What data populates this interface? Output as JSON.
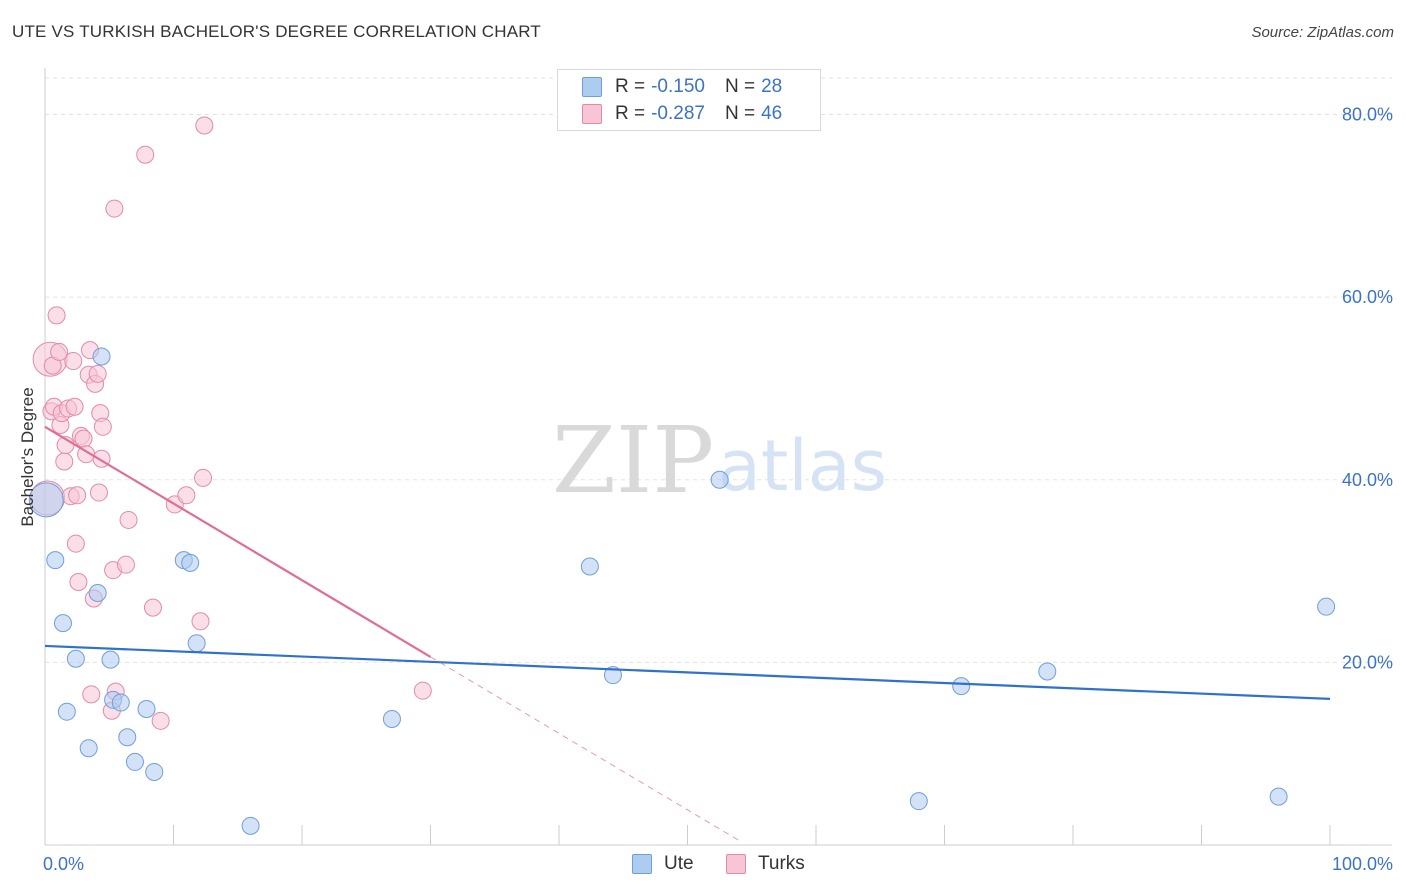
{
  "header": {
    "title": "UTE VS TURKISH BACHELOR'S DEGREE CORRELATION CHART",
    "source": "Source: ZipAtlas.com"
  },
  "legend": {
    "rows": [
      {
        "r_label": "R =",
        "r_value": "-0.150",
        "n_label": "N =",
        "n_value": "28",
        "color": "#aecbf0",
        "border": "#6f9fd8"
      },
      {
        "r_label": "R =",
        "r_value": "-0.287",
        "n_label": "N =",
        "n_value": "46",
        "color": "#f7c5d5",
        "border": "#e48aa8"
      }
    ],
    "bottom": [
      {
        "label": "Ute",
        "color": "#aecbf0",
        "border": "#6f9fd8"
      },
      {
        "label": "Turks",
        "color": "#f7c5d5",
        "border": "#e48aa8"
      }
    ]
  },
  "watermark": {
    "zip": "ZIP",
    "atlas": "atlas"
  },
  "chart_data": {
    "type": "scatter",
    "title": "UTE VS TURKISH BACHELOR'S DEGREE CORRELATION CHART",
    "xlabel": "",
    "ylabel": "Bachelor's Degree",
    "xlim": [
      0,
      100
    ],
    "ylim": [
      0,
      84
    ],
    "y_ticks": [
      {
        "value": 20,
        "label": "20.0%"
      },
      {
        "value": 40,
        "label": "40.0%"
      },
      {
        "value": 60,
        "label": "60.0%"
      },
      {
        "value": 80,
        "label": "80.0%"
      }
    ],
    "x_tick_labels": [
      {
        "value": 0,
        "label": "0.0%"
      },
      {
        "value": 100,
        "label": "100.0%"
      }
    ],
    "x_minor_ticks": [
      10,
      20,
      30,
      40,
      50,
      60,
      70,
      80,
      90,
      100
    ],
    "grid": true,
    "colors": {
      "ute": "#2f72cc",
      "turks": "#e06d96",
      "tick_label": "#3b73c8",
      "grid": "#e3e3e3",
      "axis": "#cccccc"
    },
    "series": [
      {
        "name": "Ute",
        "fill": "#aecbf0",
        "stroke": "#6f9fd8",
        "trend": {
          "x0": 0,
          "y0": 21.8,
          "x1": 100,
          "y1": 16.0
        },
        "points": [
          [
            0.1,
            37.8
          ],
          [
            0.8,
            31.2
          ],
          [
            1.4,
            24.3
          ],
          [
            1.7,
            14.6
          ],
          [
            2.4,
            20.4
          ],
          [
            3.4,
            10.6
          ],
          [
            4.1,
            27.6
          ],
          [
            4.4,
            53.5
          ],
          [
            5.1,
            20.3
          ],
          [
            5.3,
            15.9
          ],
          [
            5.9,
            15.6
          ],
          [
            6.4,
            11.8
          ],
          [
            7.0,
            9.1
          ],
          [
            7.9,
            14.9
          ],
          [
            8.5,
            8.0
          ],
          [
            10.8,
            31.2
          ],
          [
            11.3,
            30.9
          ],
          [
            11.8,
            22.1
          ],
          [
            16.0,
            2.1
          ],
          [
            27.0,
            13.8
          ],
          [
            42.4,
            30.5
          ],
          [
            44.2,
            18.6
          ],
          [
            52.5,
            40.0
          ],
          [
            68.0,
            4.8
          ],
          [
            71.3,
            17.4
          ],
          [
            78.0,
            19.0
          ],
          [
            96.0,
            5.3
          ],
          [
            99.7,
            26.1
          ]
        ]
      },
      {
        "name": "Turks",
        "fill": "#f7c5d5",
        "stroke": "#e48aa8",
        "trend": {
          "x0": 0,
          "y0": 45.8,
          "x1": 30,
          "y1": 20.6
        },
        "trend_dashed": {
          "x0": 30,
          "y0": 20.6,
          "x1": 54,
          "y1": 0.5
        },
        "points": [
          [
            0.2,
            38.0
          ],
          [
            0.4,
            53.2
          ],
          [
            0.5,
            47.5
          ],
          [
            0.6,
            52.5
          ],
          [
            0.7,
            48.0
          ],
          [
            0.9,
            58.0
          ],
          [
            1.1,
            54.0
          ],
          [
            1.2,
            46.0
          ],
          [
            1.3,
            47.3
          ],
          [
            1.5,
            42.0
          ],
          [
            1.6,
            43.8
          ],
          [
            1.8,
            47.8
          ],
          [
            2.0,
            38.2
          ],
          [
            2.2,
            53.0
          ],
          [
            2.3,
            48.0
          ],
          [
            2.4,
            33.0
          ],
          [
            2.5,
            38.3
          ],
          [
            2.6,
            28.8
          ],
          [
            2.8,
            44.8
          ],
          [
            3.0,
            44.5
          ],
          [
            3.2,
            42.8
          ],
          [
            3.4,
            51.5
          ],
          [
            3.5,
            54.2
          ],
          [
            3.6,
            16.5
          ],
          [
            3.8,
            27.0
          ],
          [
            3.9,
            50.5
          ],
          [
            4.1,
            51.6
          ],
          [
            4.2,
            38.6
          ],
          [
            4.3,
            47.3
          ],
          [
            4.4,
            42.3
          ],
          [
            4.5,
            45.8
          ],
          [
            5.2,
            14.7
          ],
          [
            5.3,
            30.1
          ],
          [
            5.5,
            16.8
          ],
          [
            6.3,
            30.7
          ],
          [
            6.5,
            35.6
          ],
          [
            7.8,
            75.6
          ],
          [
            5.4,
            69.7
          ],
          [
            8.4,
            26.0
          ],
          [
            9.0,
            13.6
          ],
          [
            10.1,
            37.3
          ],
          [
            11.0,
            38.3
          ],
          [
            12.1,
            24.5
          ],
          [
            12.3,
            40.2
          ],
          [
            12.4,
            78.8
          ],
          [
            29.4,
            16.9
          ]
        ]
      }
    ]
  }
}
